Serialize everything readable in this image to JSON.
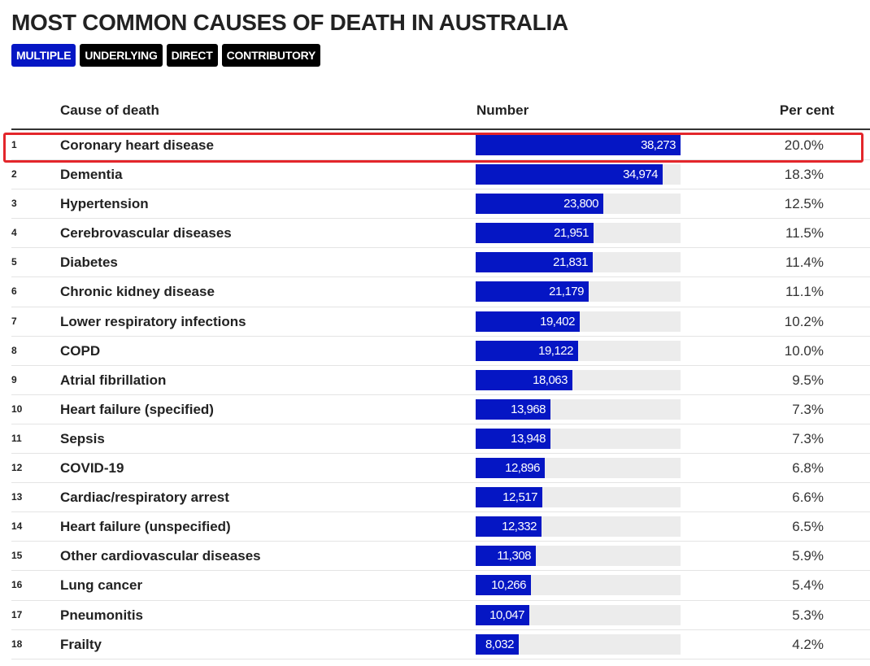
{
  "title": "MOST COMMON CAUSES OF DEATH IN AUSTRALIA",
  "filters": [
    {
      "label": "MULTIPLE",
      "active": true
    },
    {
      "label": "UNDERLYING",
      "active": false
    },
    {
      "label": "DIRECT",
      "active": false
    },
    {
      "label": "CONTRIBUTORY",
      "active": false
    }
  ],
  "columns": {
    "cause": "Cause of death",
    "number": "Number",
    "percent": "Per cent"
  },
  "colors": {
    "bar": "#0516c4",
    "track": "#ececec",
    "highlight": "#e3262b"
  },
  "max_value": 38273,
  "rows": [
    {
      "rank": "1",
      "cause": "Coronary heart disease",
      "value": 38273,
      "number": "38,273",
      "percent": "20.0%",
      "highlighted": true
    },
    {
      "rank": "2",
      "cause": "Dementia",
      "value": 34974,
      "number": "34,974",
      "percent": "18.3%"
    },
    {
      "rank": "3",
      "cause": "Hypertension",
      "value": 23800,
      "number": "23,800",
      "percent": "12.5%"
    },
    {
      "rank": "4",
      "cause": "Cerebrovascular diseases",
      "value": 21951,
      "number": "21,951",
      "percent": "11.5%"
    },
    {
      "rank": "5",
      "cause": "Diabetes",
      "value": 21831,
      "number": "21,831",
      "percent": "11.4%"
    },
    {
      "rank": "6",
      "cause": "Chronic kidney disease",
      "value": 21179,
      "number": "21,179",
      "percent": "11.1%"
    },
    {
      "rank": "7",
      "cause": "Lower respiratory infections",
      "value": 19402,
      "number": "19,402",
      "percent": "10.2%"
    },
    {
      "rank": "8",
      "cause": "COPD",
      "value": 19122,
      "number": "19,122",
      "percent": "10.0%"
    },
    {
      "rank": "9",
      "cause": "Atrial fibrillation",
      "value": 18063,
      "number": "18,063",
      "percent": "9.5%"
    },
    {
      "rank": "10",
      "cause": "Heart failure (specified)",
      "value": 13968,
      "number": "13,968",
      "percent": "7.3%"
    },
    {
      "rank": "11",
      "cause": "Sepsis",
      "value": 13948,
      "number": "13,948",
      "percent": "7.3%"
    },
    {
      "rank": "12",
      "cause": "COVID-19",
      "value": 12896,
      "number": "12,896",
      "percent": "6.8%"
    },
    {
      "rank": "13",
      "cause": "Cardiac/respiratory arrest",
      "value": 12517,
      "number": "12,517",
      "percent": "6.6%"
    },
    {
      "rank": "14",
      "cause": "Heart failure (unspecified)",
      "value": 12332,
      "number": "12,332",
      "percent": "6.5%"
    },
    {
      "rank": "15",
      "cause": "Other cardiovascular diseases",
      "value": 11308,
      "number": "11,308",
      "percent": "5.9%"
    },
    {
      "rank": "16",
      "cause": "Lung cancer",
      "value": 10266,
      "number": "10,266",
      "percent": "5.4%"
    },
    {
      "rank": "17",
      "cause": "Pneumonitis",
      "value": 10047,
      "number": "10,047",
      "percent": "5.3%"
    },
    {
      "rank": "18",
      "cause": "Frailty",
      "value": 8032,
      "number": "8,032",
      "percent": "4.2%"
    }
  ]
}
